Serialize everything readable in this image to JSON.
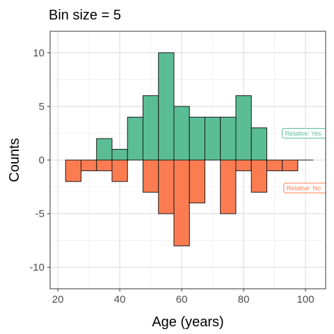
{
  "chart_data": {
    "type": "bar",
    "title": "Bin size = 5",
    "xlabel": "Age (years)",
    "ylabel": "Counts",
    "xlim": [
      17.5,
      106.5
    ],
    "ylim": [
      -12,
      12
    ],
    "xticks": [
      20,
      40,
      60,
      80,
      100
    ],
    "yticks": [
      -10,
      -5,
      0,
      5,
      10
    ],
    "grid": true,
    "bin_width": 5,
    "series": [
      {
        "color": "#5BBD95",
        "bins": [
          {
            "x0": 32.5,
            "x1": 37.5,
            "value": 2
          },
          {
            "x0": 37.5,
            "x1": 42.5,
            "value": 1
          },
          {
            "x0": 42.5,
            "x1": 47.5,
            "value": 4
          },
          {
            "x0": 47.5,
            "x1": 52.5,
            "value": 6
          },
          {
            "x0": 52.5,
            "x1": 57.5,
            "value": 10
          },
          {
            "x0": 57.5,
            "x1": 62.5,
            "value": 5
          },
          {
            "x0": 62.5,
            "x1": 67.5,
            "value": 4
          },
          {
            "x0": 67.5,
            "x1": 72.5,
            "value": 4
          },
          {
            "x0": 72.5,
            "x1": 77.5,
            "value": 4
          },
          {
            "x0": 77.5,
            "x1": 82.5,
            "value": 6
          },
          {
            "x0": 82.5,
            "x1": 87.5,
            "value": 3
          }
        ]
      },
      {
        "color": "#FC7C52",
        "bins": [
          {
            "x0": 22.5,
            "x1": 27.5,
            "value": -2
          },
          {
            "x0": 27.5,
            "x1": 32.5,
            "value": -1
          },
          {
            "x0": 32.5,
            "x1": 37.5,
            "value": -1
          },
          {
            "x0": 37.5,
            "x1": 42.5,
            "value": -2
          },
          {
            "x0": 47.5,
            "x1": 52.5,
            "value": -3
          },
          {
            "x0": 52.5,
            "x1": 57.5,
            "value": -5
          },
          {
            "x0": 57.5,
            "x1": 62.5,
            "value": -8
          },
          {
            "x0": 62.5,
            "x1": 67.5,
            "value": -4
          },
          {
            "x0": 72.5,
            "x1": 77.5,
            "value": -5
          },
          {
            "x0": 77.5,
            "x1": 82.5,
            "value": -1
          },
          {
            "x0": 82.5,
            "x1": 87.5,
            "value": -3
          },
          {
            "x0": 87.5,
            "x1": 92.5,
            "value": -1
          },
          {
            "x0": 92.5,
            "x1": 97.5,
            "value": -1
          }
        ]
      }
    ],
    "baseline": {
      "x0": 97.5,
      "x1": 102.5,
      "value": 0
    },
    "annotations": [
      {
        "text": "Relative: Yes",
        "x": 92.5,
        "y": 2.5,
        "color": "#5BBD95"
      },
      {
        "text": "Relative: No",
        "x": 93,
        "y": -2.6,
        "color": "#FC7C52"
      }
    ]
  }
}
